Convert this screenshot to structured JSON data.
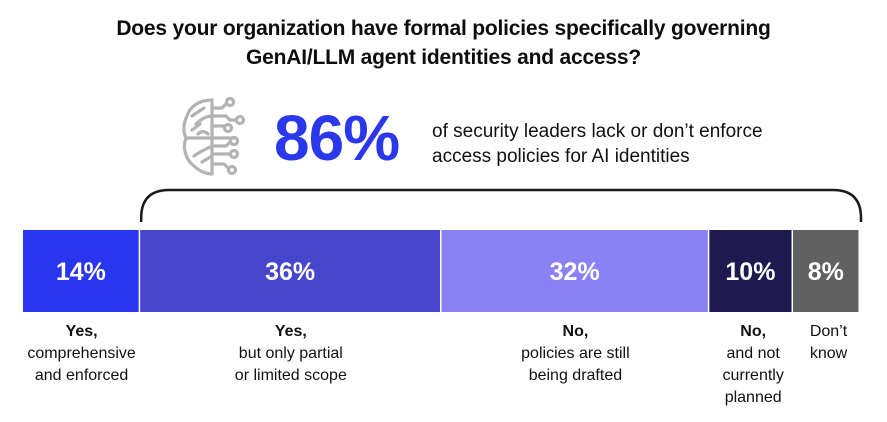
{
  "title": {
    "line1": "Does your organization have formal policies specifically governing",
    "line2": "GenAI/LLM agent identities and access?"
  },
  "callout": {
    "icon": "brain-circuit-icon",
    "value": "86%",
    "text_line1": "of security leaders lack or don’t enforce",
    "text_line2": "access policies for AI identities",
    "color": "#2a37ea"
  },
  "chart_data": {
    "type": "bar",
    "orientation": "horizontal-stacked-100",
    "title": "Does your organization have formal policies specifically governing GenAI/LLM agent identities and access?",
    "categories": [
      "Yes, comprehensive and enforced",
      "Yes, but only partial or limited scope",
      "No, policies are still being drafted",
      "No, and not currently planned",
      "Don’t know"
    ],
    "values": [
      14,
      36,
      32,
      10,
      8
    ],
    "value_labels": [
      "14%",
      "36%",
      "32%",
      "10%",
      "8%"
    ],
    "colors": [
      "#2936ee",
      "#4646cc",
      "#8a82f4",
      "#1e1a50",
      "#616161"
    ],
    "bracket": {
      "from_index": 1,
      "to_index": 4,
      "label": "86%"
    },
    "xlim": [
      0,
      100
    ],
    "grid": false,
    "legend": "none"
  },
  "labels": [
    {
      "head": "Yes,",
      "lines": [
        "comprehensive",
        "and enforced"
      ]
    },
    {
      "head": "Yes,",
      "lines": [
        "but only partial",
        "or limited scope"
      ]
    },
    {
      "head": "No,",
      "lines": [
        "policies are still",
        "being drafted"
      ]
    },
    {
      "head": "No,",
      "lines": [
        "and not",
        "currently",
        "planned"
      ]
    },
    {
      "head": "",
      "lines": [
        "Don’t",
        "know"
      ]
    }
  ]
}
